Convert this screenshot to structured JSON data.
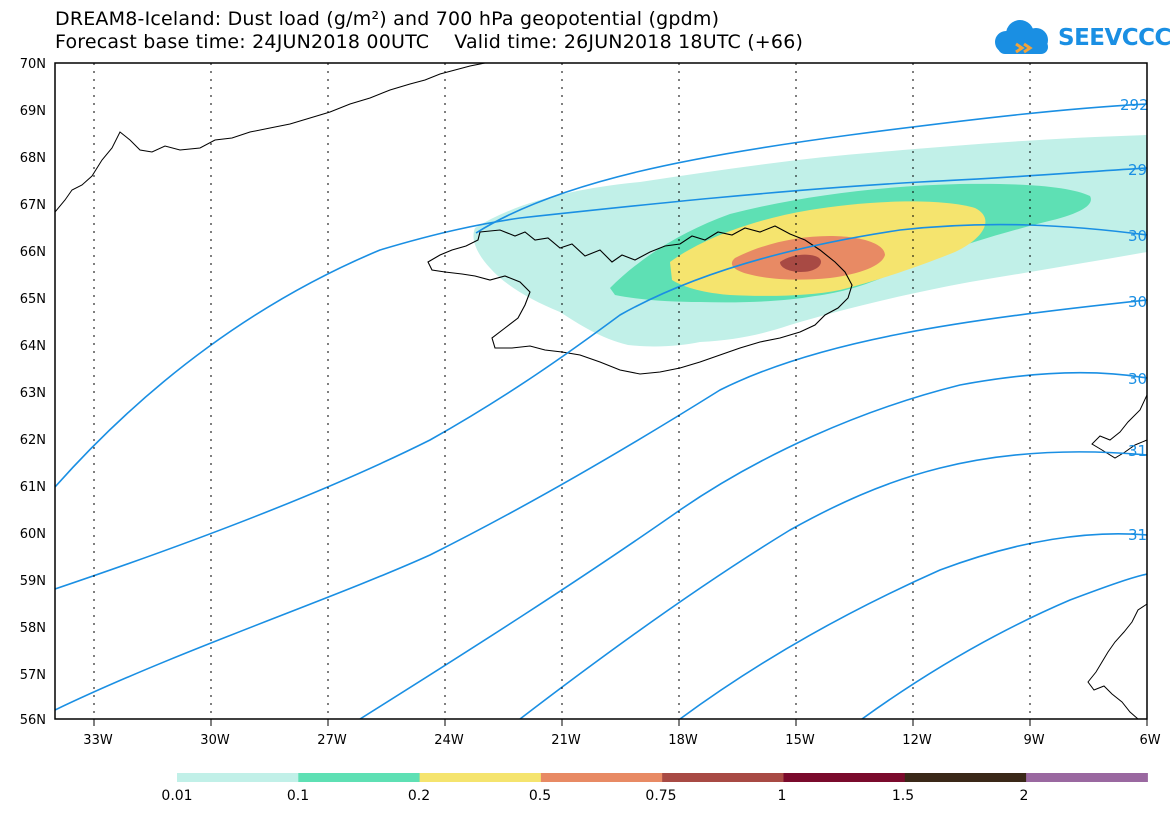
{
  "header": {
    "title_line1": "DREAM8-Iceland: Dust load (g/m²) and 700 hPa geopotential (gpdm)",
    "title_line2": "Forecast base time: 24JUN2018 00UTC    Valid time: 26JUN2018 18UTC (+66)"
  },
  "logo": {
    "text": "SEEVCCC",
    "icon": "cloud-icon",
    "color": "#1a8fe3"
  },
  "map": {
    "lat_labels": [
      "70N",
      "69N",
      "68N",
      "67N",
      "66N",
      "65N",
      "64N",
      "63N",
      "62N",
      "61N",
      "60N",
      "59N",
      "58N",
      "57N",
      "56N"
    ],
    "lon_labels": [
      "33W",
      "30W",
      "27W",
      "24W",
      "21W",
      "18W",
      "15W",
      "12W",
      "9W",
      "6W"
    ],
    "contour_labels": [
      "292",
      "29",
      "30",
      "30",
      "30",
      "31",
      "31"
    ],
    "contour_color": "#1a8fe3"
  },
  "colorbar": {
    "labels": [
      "0.01",
      "0.1",
      "0.2",
      "0.5",
      "0.75",
      "1",
      "1.5",
      "2"
    ],
    "colors": [
      "#c1f0e8",
      "#5ee0b4",
      "#f5e46e",
      "#e88a64",
      "#a84a44",
      "#7a0a2c",
      "#3a2818",
      "#9a68a0"
    ]
  }
}
